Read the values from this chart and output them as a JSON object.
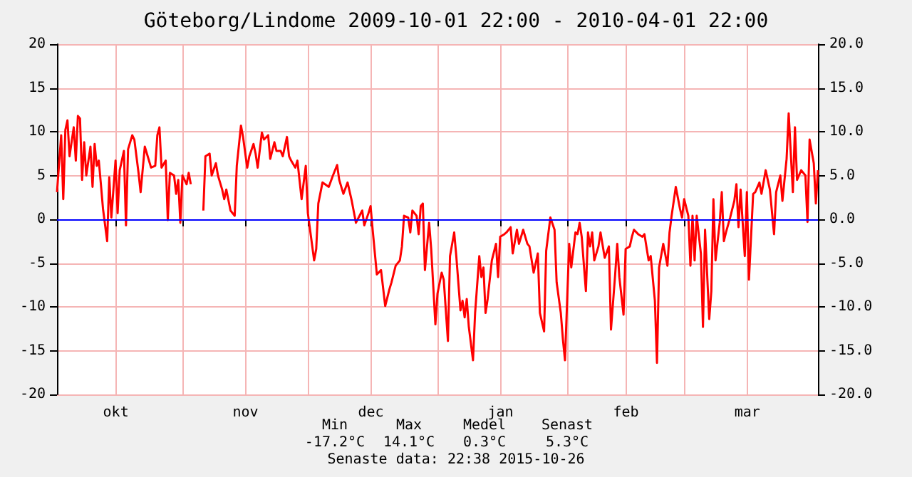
{
  "chart_data": {
    "type": "line",
    "title": "Göteborg/Lindome 2009-10-01 22:00 - 2010-04-01 22:00",
    "x": [
      "2009-10-01T22:00",
      "2009-10-02T22:00",
      "2009-10-03T10:00",
      "2009-10-03T22:00",
      "2009-10-04T10:00",
      "2009-10-04T22:00",
      "2009-10-05T22:00",
      "2009-10-06T10:00",
      "2009-10-06T22:00",
      "2009-10-07T10:00",
      "2009-10-07T22:00",
      "2009-10-08T10:00",
      "2009-10-08T22:00",
      "2009-10-09T22:00",
      "2009-10-10T10:00",
      "2009-10-10T22:00",
      "2009-10-11T10:00",
      "2009-10-11T22:00",
      "2009-10-12T10:00",
      "2009-10-12T22:00",
      "2009-10-13T22:00",
      "2009-10-14T10:00",
      "2009-10-14T22:00",
      "2009-10-15T22:00",
      "2009-10-16T10:00",
      "2009-10-16T22:00",
      "2009-10-17T22:00",
      "2009-10-18T10:00",
      "2009-10-18T22:00",
      "2009-10-19T22:00",
      "2009-10-20T10:00",
      "2009-10-21T10:00",
      "2009-10-21T22:00",
      "2009-10-22T22:00",
      "2009-10-23T10:00",
      "2009-10-24T10:00",
      "2009-10-25T10:00",
      "2009-10-25T22:00",
      "2009-10-26T10:00",
      "2009-10-26T22:00",
      "2009-10-27T22:00",
      "2009-10-28T10:00",
      "2009-10-28T22:00",
      "2009-10-29T22:00",
      "2009-10-30T10:00",
      "2009-10-30T22:00",
      "2009-10-31T10:00",
      "2009-10-31T22:00",
      "2009-11-01T22:00",
      "2009-11-02T10:00",
      "2009-11-02T22:00",
      "2009-11-03T22:00",
      "2009-11-05T22:00",
      "2009-11-06T10:00",
      "2009-11-07T10:00",
      "2009-11-07T22:00",
      "2009-11-08T22:00",
      "2009-11-09T10:00",
      "2009-11-10T10:00",
      "2009-11-10T22:00",
      "2009-11-11T10:00",
      "2009-11-12T10:00",
      "2009-11-13T10:00",
      "2009-11-13T22:00",
      "2009-11-14T22:00",
      "2009-11-15T10:00",
      "2009-11-16T10:00",
      "2009-11-16T22:00",
      "2009-11-17T22:00",
      "2009-11-18T10:00",
      "2009-11-18T22:00",
      "2009-11-19T22:00",
      "2009-11-20T10:00",
      "2009-11-21T10:00",
      "2009-11-21T22:00",
      "2009-11-22T22:00",
      "2009-11-23T10:00",
      "2009-11-24T10:00",
      "2009-11-24T22:00",
      "2009-11-25T22:00",
      "2009-11-26T10:00",
      "2009-11-26T22:00",
      "2009-11-27T22:00",
      "2009-11-28T10:00",
      "2009-11-29T10:00",
      "2009-11-30T10:00",
      "2009-11-30T22:00",
      "2009-12-02T10:00",
      "2009-12-02T22:00",
      "2009-12-03T10:00",
      "2009-12-04T10:00",
      "2009-12-05T22:00",
      "2009-12-06T22:00",
      "2009-12-07T22:00",
      "2009-12-08T10:00",
      "2009-12-09T10:00",
      "2009-12-10T10:00",
      "2009-12-11T10:00",
      "2009-12-12T10:00",
      "2009-12-13T22:00",
      "2009-12-14T10:00",
      "2009-12-15T10:00",
      "2009-12-15T22:00",
      "2009-12-16T10:00",
      "2009-12-17T10:00",
      "2009-12-18T10:00",
      "2009-12-19T10:00",
      "2009-12-20T10:00",
      "2009-12-20T22:00",
      "2009-12-21T22:00",
      "2009-12-22T22:00",
      "2009-12-23T10:00",
      "2009-12-23T22:00",
      "2009-12-24T22:00",
      "2009-12-25T10:00",
      "2009-12-25T22:00",
      "2009-12-26T22:00",
      "2009-12-27T10:00",
      "2009-12-27T22:00",
      "2009-12-28T10:00",
      "2009-12-28T22:00",
      "2009-12-29T22:00",
      "2009-12-30T10:00",
      "2009-12-31T10:00",
      "2009-12-31T22:00",
      "2010-01-01T22:00",
      "2010-01-02T10:00",
      "2010-01-03T10:00",
      "2010-01-03T22:00",
      "2010-01-04T22:00",
      "2010-01-05T10:00",
      "2010-01-06T10:00",
      "2010-01-06T22:00",
      "2010-01-07T10:00",
      "2010-01-07T22:00",
      "2010-01-08T10:00",
      "2010-01-09T10:00",
      "2010-01-09T22:00",
      "2010-01-10T22:00",
      "2010-01-11T10:00",
      "2010-01-11T22:00",
      "2010-01-12T10:00",
      "2010-01-12T22:00",
      "2010-01-13T22:00",
      "2010-01-14T22:00",
      "2010-01-15T10:00",
      "2010-01-15T22:00",
      "2010-01-16T22:00",
      "2010-01-17T10:00",
      "2010-01-18T10:00",
      "2010-01-18T22:00",
      "2010-01-19T22:00",
      "2010-01-20T10:00",
      "2010-01-21T10:00",
      "2010-01-22T10:00",
      "2010-01-22T22:00",
      "2010-01-23T22:00",
      "2010-01-24T22:00",
      "2010-01-25T10:00",
      "2010-01-26T10:00",
      "2010-01-26T22:00",
      "2010-01-27T22:00",
      "2010-01-28T22:00",
      "2010-01-29T10:00",
      "2010-01-30T10:00",
      "2010-01-30T22:00",
      "2010-01-31T10:00",
      "2010-02-01T10:00",
      "2010-02-01T22:00",
      "2010-02-02T22:00",
      "2010-02-03T10:00",
      "2010-02-03T22:00",
      "2010-02-04T10:00",
      "2010-02-05T10:00",
      "2010-02-05T22:00",
      "2010-02-06T10:00",
      "2010-02-06T22:00",
      "2010-02-07T10:00",
      "2010-02-08T10:00",
      "2010-02-08T22:00",
      "2010-02-09T22:00",
      "2010-02-10T22:00",
      "2010-02-11T10:00",
      "2010-02-12T10:00",
      "2010-02-12T22:00",
      "2010-02-13T10:00",
      "2010-02-14T10:00",
      "2010-02-14T22:00",
      "2010-02-15T22:00",
      "2010-02-16T10:00",
      "2010-02-16T22:00",
      "2010-02-17T22:00",
      "2010-02-18T22:00",
      "2010-02-19T10:00",
      "2010-02-20T10:00",
      "2010-02-20T22:00",
      "2010-02-21T22:00",
      "2010-02-22T10:00",
      "2010-02-22T22:00",
      "2010-02-23T22:00",
      "2010-02-24T22:00",
      "2010-02-25T10:00",
      "2010-02-25T22:00",
      "2010-02-26T22:00",
      "2010-02-27T22:00",
      "2010-02-28T10:00",
      "2010-02-28T22:00",
      "2010-03-01T22:00",
      "2010-03-02T10:00",
      "2010-03-02T22:00",
      "2010-03-03T10:00",
      "2010-03-03T22:00",
      "2010-03-04T22:00",
      "2010-03-05T10:00",
      "2010-03-05T22:00",
      "2010-03-06T22:00",
      "2010-03-07T10:00",
      "2010-03-07T22:00",
      "2010-03-08T10:00",
      "2010-03-09T10:00",
      "2010-03-09T22:00",
      "2010-03-10T10:00",
      "2010-03-10T22:00",
      "2010-03-11T22:00",
      "2010-03-12T22:00",
      "2010-03-13T10:00",
      "2010-03-13T22:00",
      "2010-03-14T10:00",
      "2010-03-15T10:00",
      "2010-03-15T22:00",
      "2010-03-16T10:00",
      "2010-03-17T10:00",
      "2010-03-17T22:00",
      "2010-03-18T22:00",
      "2010-03-19T10:00",
      "2010-03-20T10:00",
      "2010-03-21T10:00",
      "2010-03-22T10:00",
      "2010-03-22T22:00",
      "2010-03-23T22:00",
      "2010-03-24T10:00",
      "2010-03-25T10:00",
      "2010-03-25T22:00",
      "2010-03-26T22:00",
      "2010-03-27T10:00",
      "2010-03-27T22:00",
      "2010-03-28T22:00",
      "2010-03-29T22:00",
      "2010-03-30T10:00",
      "2010-03-30T22:00",
      "2010-03-31T22:00",
      "2010-04-01T10:00",
      "2010-04-01T22:00"
    ],
    "series": [
      {
        "color": "#ff0000",
        "values": [
          3.1,
          9.6,
          2.3,
          10.2,
          11.3,
          7.2,
          10.5,
          6.7,
          11.8,
          11.5,
          4.5,
          8.8,
          5.0,
          8.3,
          3.7,
          8.6,
          6.1,
          6.7,
          4.0,
          1.2,
          -2.5,
          4.8,
          0.2,
          6.7,
          0.7,
          5.6,
          7.8,
          -0.7,
          8.0,
          9.6,
          9.1,
          5.3,
          3.1,
          8.3,
          7.5,
          5.9,
          6.1,
          9.6,
          10.5,
          5.9,
          6.7,
          -0.1,
          5.3,
          5.0,
          2.9,
          4.5,
          -0.4,
          5.0,
          4.0,
          5.3,
          4.0,
          null,
          1.0,
          7.2,
          7.5,
          5.0,
          6.4,
          5.0,
          3.4,
          2.3,
          3.4,
          1.0,
          0.4,
          6.1,
          10.7,
          9.4,
          5.9,
          7.2,
          8.6,
          7.5,
          5.9,
          9.9,
          9.1,
          9.6,
          6.9,
          8.8,
          7.8,
          7.8,
          7.2,
          9.4,
          7.2,
          6.7,
          5.9,
          6.7,
          2.3,
          6.1,
          0.7,
          -4.7,
          -3.4,
          1.8,
          4.2,
          3.7,
          5.0,
          6.2,
          4.5,
          2.9,
          4.2,
          2.1,
          -0.4,
          1.0,
          -0.7,
          0.7,
          1.5,
          -1.2,
          -6.3,
          -5.8,
          -9.9,
          -8.0,
          -7.2,
          -5.3,
          -4.7,
          -3.1,
          0.4,
          0.2,
          -1.5,
          1.0,
          0.4,
          -1.7,
          1.5,
          1.8,
          -5.8,
          -0.4,
          -3.4,
          -12.0,
          -8.5,
          -6.1,
          -6.9,
          -13.9,
          -4.2,
          -1.5,
          -4.2,
          -10.4,
          -9.3,
          -11.2,
          -9.1,
          -12.3,
          -16.1,
          -10.7,
          -4.2,
          -6.6,
          -5.5,
          -10.7,
          -9.1,
          -4.7,
          -2.8,
          -6.6,
          -2.0,
          -1.7,
          -1.5,
          -0.9,
          -3.9,
          -1.2,
          -2.8,
          -1.2,
          -2.8,
          -3.1,
          -6.1,
          -3.9,
          -10.7,
          -12.8,
          -3.6,
          0.2,
          -1.2,
          -7.2,
          -10.7,
          -13.7,
          -16.1,
          -2.8,
          -5.5,
          -1.5,
          -1.7,
          -0.4,
          -2.0,
          -8.2,
          -1.5,
          -3.1,
          -1.5,
          -4.7,
          -3.1,
          -1.5,
          -4.4,
          -3.1,
          -12.6,
          -6.3,
          -2.8,
          -6.6,
          -10.9,
          -3.4,
          -3.1,
          -2.0,
          -1.2,
          -1.7,
          -2.0,
          -1.7,
          -4.7,
          -4.2,
          -9.3,
          -16.4,
          -5.5,
          -2.8,
          -5.3,
          -1.5,
          0.4,
          3.7,
          1.2,
          0.2,
          2.3,
          0.4,
          -5.3,
          0.4,
          -4.7,
          0.4,
          -3.9,
          -12.3,
          -1.2,
          -11.4,
          -8.2,
          2.3,
          -4.7,
          -0.4,
          3.1,
          -2.5,
          -1.5,
          0.2,
          2.1,
          4.0,
          -0.9,
          3.4,
          -4.2,
          3.1,
          -6.9,
          2.9,
          3.1,
          4.2,
          2.9,
          5.6,
          3.4,
          -1.7,
          3.1,
          5.0,
          2.1,
          6.9,
          12.1,
          3.1,
          10.5,
          4.5,
          5.6,
          5.0,
          -0.3,
          9.1,
          6.4,
          1.8,
          5.6
        ]
      }
    ],
    "xlim": [
      "2009-10-01T22:00",
      "2010-04-01T22:00"
    ],
    "xticks": [
      {
        "value": "2009-10-16",
        "label": "okt"
      },
      {
        "value": "2009-11-01",
        "label": null
      },
      {
        "value": "2009-11-16",
        "label": "nov"
      },
      {
        "value": "2009-12-01",
        "label": null
      },
      {
        "value": "2009-12-16",
        "label": "dec"
      },
      {
        "value": "2010-01-01",
        "label": null
      },
      {
        "value": "2010-01-16",
        "label": "jan"
      },
      {
        "value": "2010-02-01",
        "label": null
      },
      {
        "value": "2010-02-15",
        "label": "feb"
      },
      {
        "value": "2010-03-01",
        "label": null
      },
      {
        "value": "2010-03-16",
        "label": "mar"
      }
    ],
    "ylim": [
      -20,
      20
    ],
    "yticks": [
      -20,
      -15,
      -10,
      -5,
      0,
      5,
      10,
      15,
      20
    ],
    "y2lim": [
      -20,
      20
    ],
    "y2ticks": [
      {
        "value": -20,
        "label": "-20.0"
      },
      {
        "value": -15,
        "label": "-15.0"
      },
      {
        "value": -10,
        "label": "-10.0"
      },
      {
        "value": -5,
        "label": "-5.0"
      },
      {
        "value": 0,
        "label": "0.0"
      },
      {
        "value": 5,
        "label": "5.0"
      },
      {
        "value": 10,
        "label": "10.0"
      },
      {
        "value": 15,
        "label": "15.0"
      },
      {
        "value": 20,
        "label": "20.0"
      }
    ],
    "ref_lines": [
      {
        "axis": "y",
        "value": 0,
        "color": "#0000ff"
      }
    ],
    "grid": true,
    "marker": "none",
    "line_style": "solid",
    "annotations": [
      "Min",
      "Max",
      "Medel",
      "Senast",
      "-17.2°C",
      "14.1°C",
      "0.3°C",
      "5.3°C",
      "Senaste data: 22:38 2015-10-26"
    ]
  }
}
